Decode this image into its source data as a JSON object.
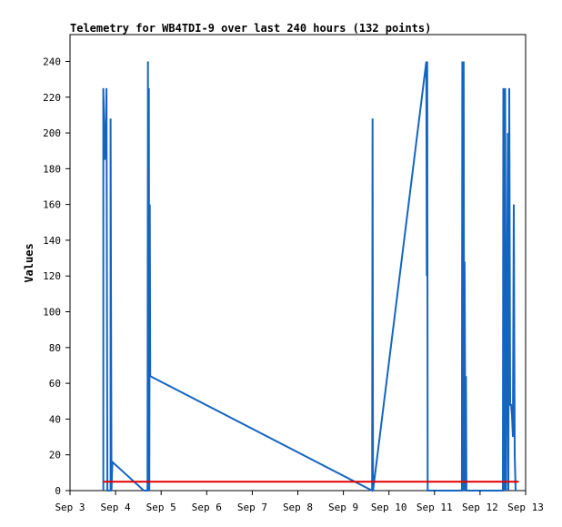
{
  "chart_data": {
    "type": "line",
    "title": "Telemetry for WB4TDI-9 over last 240 hours (132 points)",
    "xlabel": "",
    "ylabel": "Values",
    "x_tick_labels": [
      "Sep 3",
      "Sep 4",
      "Sep 5",
      "Sep 6",
      "Sep 7",
      "Sep 8",
      "Sep 9",
      "Sep 10",
      "Sep 11",
      "Sep 12",
      "Sep 13"
    ],
    "xlim": [
      3.0,
      13.0
    ],
    "ylim": [
      0,
      255
    ],
    "y_ticks": [
      0,
      20,
      40,
      60,
      80,
      100,
      120,
      140,
      160,
      180,
      200,
      220,
      240
    ],
    "grid": false,
    "colors": {
      "telemetry": "#1565c0",
      "baseline": "#e00000"
    },
    "series": [
      {
        "key": "telemetry",
        "color": "#1565c0",
        "points": [
          [
            3.73,
            0
          ],
          [
            3.73,
            225
          ],
          [
            3.76,
            190
          ],
          [
            3.76,
            185
          ],
          [
            3.78,
            192
          ],
          [
            3.8,
            225
          ],
          [
            3.82,
            0
          ],
          [
            3.89,
            0
          ],
          [
            3.89,
            208
          ],
          [
            3.91,
            0
          ],
          [
            3.93,
            16
          ],
          [
            4.62,
            0
          ],
          [
            4.7,
            0
          ],
          [
            4.71,
            240
          ],
          [
            4.72,
            0
          ],
          [
            4.73,
            225
          ],
          [
            4.74,
            0
          ],
          [
            4.75,
            160
          ],
          [
            4.76,
            64
          ],
          [
            9.63,
            0
          ],
          [
            9.64,
            208
          ],
          [
            9.65,
            0
          ],
          [
            10.82,
            240
          ],
          [
            10.83,
            120
          ],
          [
            10.84,
            240
          ],
          [
            10.85,
            0
          ],
          [
            11.6,
            0
          ],
          [
            11.61,
            240
          ],
          [
            11.63,
            0
          ],
          [
            11.64,
            240
          ],
          [
            11.65,
            0
          ],
          [
            11.66,
            128
          ],
          [
            11.68,
            0
          ],
          [
            11.69,
            64
          ],
          [
            11.7,
            0
          ],
          [
            12.5,
            0
          ],
          [
            12.51,
            225
          ],
          [
            12.53,
            0
          ],
          [
            12.55,
            225
          ],
          [
            12.57,
            0
          ],
          [
            12.59,
            97
          ],
          [
            12.61,
            200
          ],
          [
            12.62,
            0
          ],
          [
            12.64,
            225
          ],
          [
            12.66,
            48
          ],
          [
            12.68,
            48
          ],
          [
            12.7,
            42
          ],
          [
            12.72,
            30
          ],
          [
            12.74,
            160
          ],
          [
            12.76,
            20
          ],
          [
            12.78,
            0
          ]
        ]
      },
      {
        "key": "baseline",
        "color": "#e00000",
        "points": [
          [
            3.73,
            5
          ],
          [
            12.85,
            5
          ]
        ]
      }
    ]
  }
}
